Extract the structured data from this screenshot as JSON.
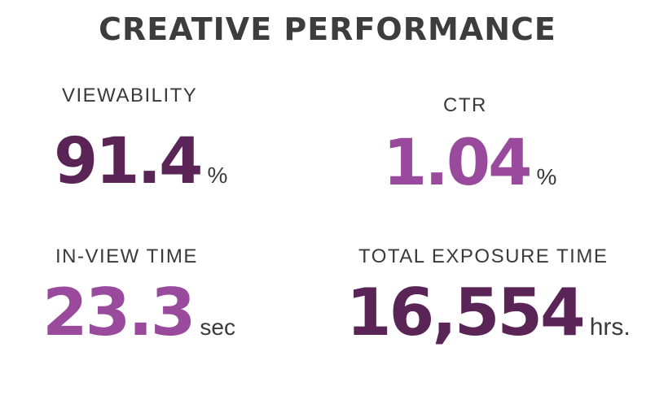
{
  "title": "CREATIVE PERFORMANCE",
  "metrics": {
    "viewability": {
      "label": "VIEWABILITY",
      "value": "91.4",
      "unit": "%",
      "color": "#5a2457"
    },
    "ctr": {
      "label": "CTR",
      "value": "1.04",
      "unit": "%",
      "color": "#9a4a9c"
    },
    "in_view_time": {
      "label": "IN-VIEW TIME",
      "value": "23.3",
      "unit": "sec",
      "color": "#9a4a9c"
    },
    "total_exposure_time": {
      "label": "TOTAL EXPOSURE TIME",
      "value": "16,554",
      "unit": "hrs.",
      "color": "#5a2457"
    }
  }
}
